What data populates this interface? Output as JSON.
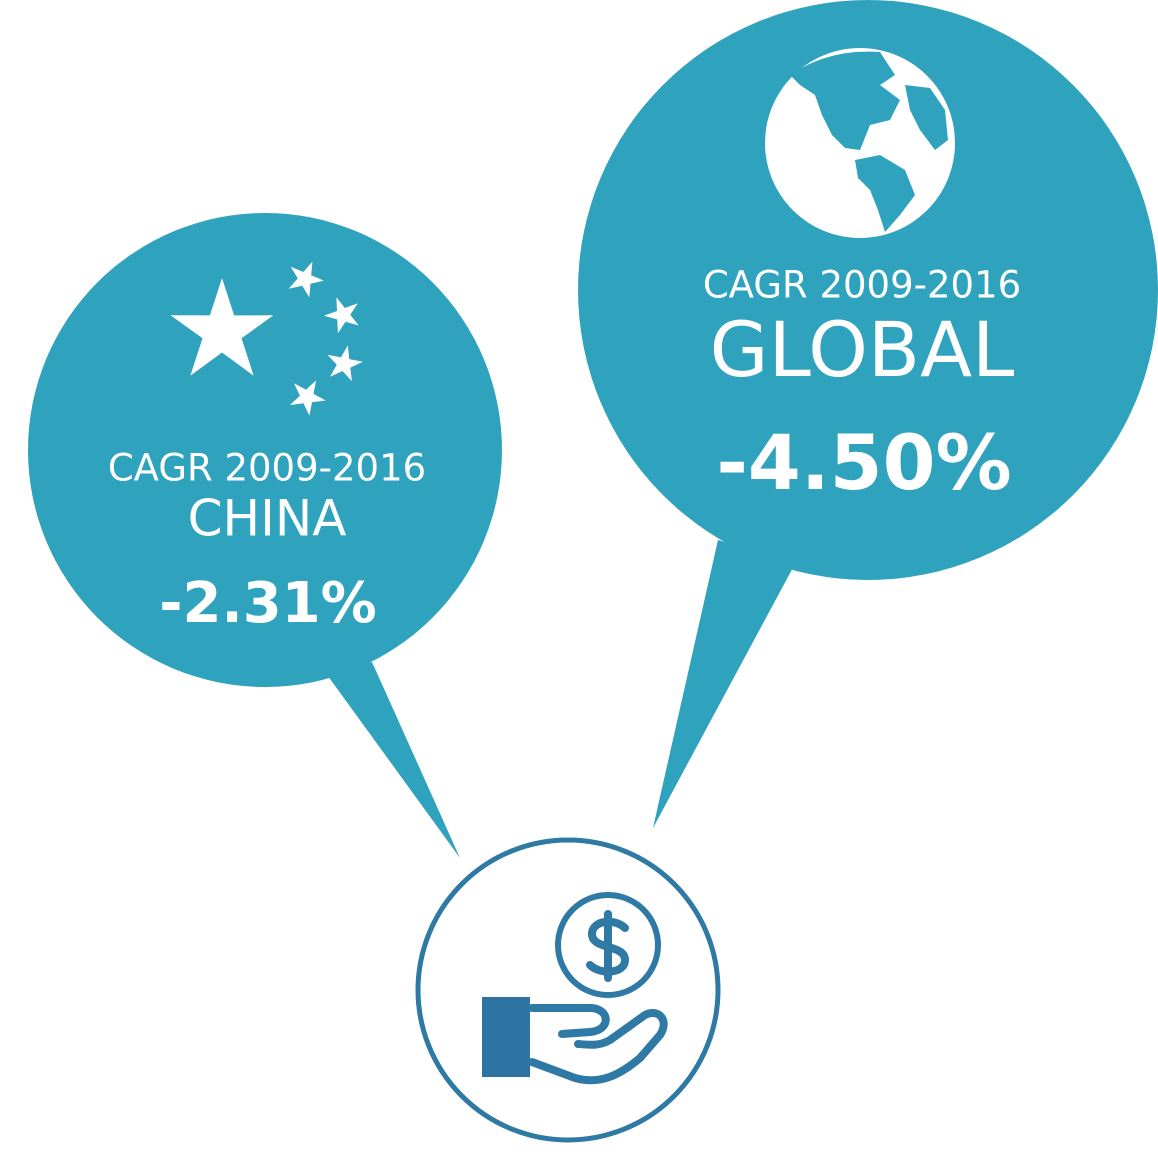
{
  "bubbles": [
    {
      "label": "CAGR 2009-2016",
      "region": "CHINA",
      "value": "-2.31%"
    },
    {
      "label": "CAGR 2009-2016",
      "region": "GLOBAL",
      "value": "-4.50%"
    }
  ]
}
